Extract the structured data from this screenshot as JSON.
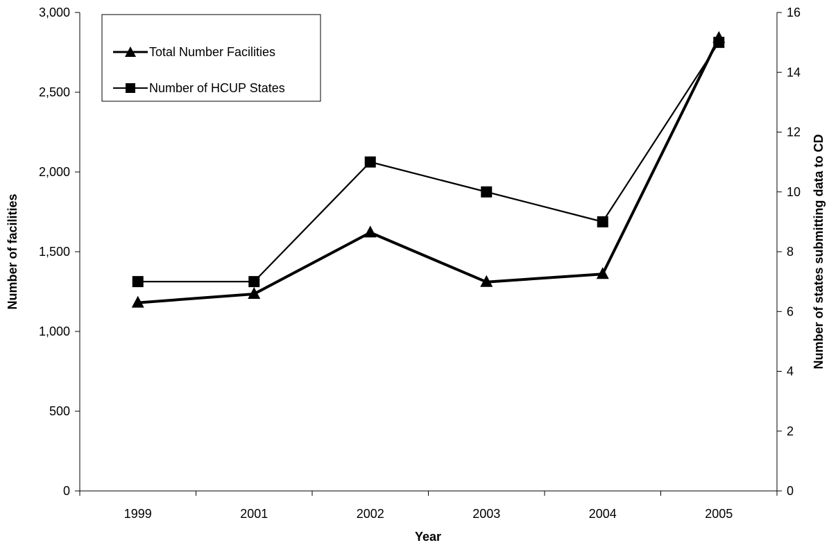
{
  "chart_data": {
    "type": "line",
    "categories": [
      "1999",
      "2001",
      "2002",
      "2003",
      "2004",
      "2005"
    ],
    "xlabel": "Year",
    "ylabel": "Number of facilities",
    "y2label": "Number of states submitting data to CD",
    "ylim": [
      0,
      3000
    ],
    "y2lim": [
      0,
      16
    ],
    "yticks": [
      "0",
      "500",
      "1,000",
      "1,500",
      "2,000",
      "2,500",
      "3,000"
    ],
    "y2ticks": [
      "0",
      "2",
      "4",
      "6",
      "8",
      "10",
      "12",
      "14",
      "16"
    ],
    "series": [
      {
        "name": "Total Number Facilities",
        "axis": "left",
        "marker": "triangle",
        "values": [
          1180,
          1235,
          1620,
          1310,
          1360,
          2840
        ]
      },
      {
        "name": "Number of HCUP States",
        "axis": "right",
        "marker": "square",
        "values": [
          7,
          7,
          11,
          10,
          9,
          15
        ]
      }
    ],
    "legend_position": "top-left",
    "grid": false,
    "color": "#000000"
  }
}
